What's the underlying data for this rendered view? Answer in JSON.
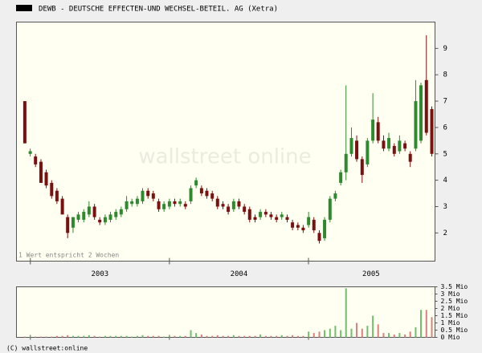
{
  "chart_data": {
    "type": "candlestick",
    "title": "DEWB - DEUTSCHE EFFECTEN-UND WECHSEL-BETEIL. AG (Xetra)",
    "note": "1 Wert entspricht 2 Wochen",
    "watermark": "wallstreet online",
    "footer": "(C) wallstreet:online",
    "up_color": "#2f8a2f",
    "down_color": "#7a1010",
    "x": [
      2002.96,
      2002.999,
      2003.037,
      2003.076,
      2003.114,
      2003.153,
      2003.191,
      2003.23,
      2003.268,
      2003.307,
      2003.345,
      2003.384,
      2003.422,
      2003.461,
      2003.499,
      2003.538,
      2003.576,
      2003.615,
      2003.653,
      2003.692,
      2003.73,
      2003.769,
      2003.807,
      2003.846,
      2003.884,
      2003.923,
      2003.961,
      2004.0,
      2004.038,
      2004.077,
      2004.115,
      2004.154,
      2004.192,
      2004.231,
      2004.269,
      2004.308,
      2004.346,
      2004.385,
      2004.423,
      2004.462,
      2004.5,
      2004.539,
      2004.577,
      2004.616,
      2004.654,
      2004.693,
      2004.731,
      2004.77,
      2004.808,
      2004.847,
      2004.885,
      2004.924,
      2004.962,
      2005.001,
      2005.039,
      2005.078,
      2005.116,
      2005.155,
      2005.193,
      2005.232,
      2005.27,
      2005.309,
      2005.347,
      2005.386,
      2005.424,
      2005.463,
      2005.501,
      2005.54,
      2005.578,
      2005.617,
      2005.655,
      2005.694,
      2005.732,
      2005.771,
      2005.809,
      2005.848,
      2005.887
    ],
    "open": [
      7.0,
      5.0,
      4.9,
      4.7,
      4.3,
      3.9,
      3.6,
      3.3,
      2.6,
      2.2,
      2.5,
      2.5,
      2.7,
      3.0,
      2.5,
      2.4,
      2.5,
      2.6,
      2.7,
      2.9,
      3.1,
      3.1,
      3.2,
      3.6,
      3.5,
      3.2,
      2.9,
      3.0,
      3.2,
      3.1,
      3.1,
      3.2,
      3.8,
      3.7,
      3.6,
      3.5,
      3.3,
      3.1,
      3.0,
      2.9,
      3.2,
      3.0,
      2.9,
      2.6,
      2.6,
      2.8,
      2.7,
      2.6,
      2.6,
      2.6,
      2.4,
      2.3,
      2.2,
      2.3,
      2.5,
      2.0,
      1.8,
      2.5,
      3.3,
      3.9,
      4.3,
      5.0,
      5.5,
      4.8,
      4.6,
      5.5,
      6.2,
      5.5,
      5.2,
      5.3,
      5.1,
      5.4,
      5.0,
      5.2,
      5.5,
      7.8,
      6.7
    ],
    "high": [
      7.0,
      5.2,
      5.0,
      4.8,
      4.4,
      4.0,
      3.7,
      3.4,
      2.7,
      2.6,
      2.8,
      2.9,
      3.2,
      3.1,
      2.6,
      2.7,
      2.8,
      2.9,
      3.0,
      3.4,
      3.3,
      3.4,
      3.7,
      3.7,
      3.6,
      3.3,
      3.2,
      3.3,
      3.3,
      3.3,
      3.2,
      3.8,
      4.1,
      3.8,
      3.7,
      3.6,
      3.4,
      3.2,
      3.1,
      3.3,
      3.3,
      3.1,
      3.0,
      2.7,
      2.9,
      2.9,
      2.8,
      2.7,
      2.8,
      2.7,
      2.5,
      2.4,
      2.3,
      2.8,
      2.6,
      2.1,
      2.6,
      3.4,
      3.6,
      4.4,
      7.6,
      6.0,
      5.7,
      4.9,
      5.6,
      7.3,
      6.4,
      5.7,
      5.8,
      5.4,
      5.7,
      5.5,
      5.1,
      7.8,
      7.7,
      9.5,
      6.8
    ],
    "low": [
      5.4,
      4.9,
      4.5,
      3.9,
      3.7,
      3.3,
      3.1,
      2.7,
      1.8,
      2.0,
      2.4,
      2.4,
      2.6,
      2.5,
      2.3,
      2.3,
      2.4,
      2.5,
      2.6,
      2.8,
      3.0,
      3.0,
      3.1,
      3.3,
      3.2,
      2.8,
      2.8,
      2.9,
      3.0,
      3.0,
      2.9,
      3.1,
      3.7,
      3.4,
      3.3,
      3.2,
      2.9,
      2.9,
      2.7,
      2.8,
      2.9,
      2.7,
      2.4,
      2.4,
      2.5,
      2.6,
      2.5,
      2.4,
      2.5,
      2.4,
      2.1,
      2.1,
      2.0,
      2.2,
      2.0,
      1.6,
      1.7,
      2.4,
      3.2,
      3.8,
      4.0,
      4.9,
      4.7,
      3.9,
      4.5,
      5.4,
      5.4,
      5.1,
      5.1,
      4.9,
      5.0,
      5.1,
      4.5,
      5.1,
      5.4,
      5.7,
      4.9
    ],
    "close": [
      5.4,
      5.1,
      4.6,
      3.9,
      3.8,
      3.4,
      3.2,
      2.7,
      2.0,
      2.6,
      2.7,
      2.8,
      3.0,
      2.6,
      2.4,
      2.6,
      2.7,
      2.8,
      2.9,
      3.2,
      3.2,
      3.3,
      3.6,
      3.4,
      3.3,
      2.9,
      3.1,
      3.2,
      3.1,
      3.2,
      3.0,
      3.7,
      4.0,
      3.5,
      3.4,
      3.3,
      3.0,
      3.0,
      2.8,
      3.2,
      3.0,
      2.8,
      2.5,
      2.5,
      2.8,
      2.7,
      2.6,
      2.5,
      2.7,
      2.5,
      2.2,
      2.2,
      2.1,
      2.6,
      2.1,
      1.7,
      2.5,
      3.3,
      3.5,
      4.3,
      5.0,
      5.6,
      4.8,
      4.2,
      5.5,
      6.3,
      5.5,
      5.2,
      5.6,
      5.0,
      5.5,
      5.2,
      4.7,
      7.0,
      7.6,
      5.8,
      5.0
    ],
    "volume": [
      0.05,
      0.05,
      0.05,
      0.05,
      0.05,
      0.05,
      0.1,
      0.1,
      0.15,
      0.1,
      0.1,
      0.1,
      0.15,
      0.1,
      0.05,
      0.1,
      0.1,
      0.1,
      0.1,
      0.1,
      0.05,
      0.1,
      0.15,
      0.1,
      0.1,
      0.1,
      0.05,
      0.1,
      0.1,
      0.1,
      0.1,
      0.5,
      0.3,
      0.2,
      0.1,
      0.1,
      0.15,
      0.1,
      0.1,
      0.15,
      0.1,
      0.1,
      0.1,
      0.1,
      0.2,
      0.1,
      0.1,
      0.1,
      0.15,
      0.1,
      0.15,
      0.1,
      0.1,
      0.4,
      0.3,
      0.4,
      0.5,
      0.6,
      0.8,
      0.5,
      3.4,
      0.6,
      1.0,
      0.6,
      0.8,
      1.5,
      0.9,
      0.3,
      0.3,
      0.2,
      0.3,
      0.2,
      0.4,
      0.7,
      1.9,
      1.9,
      1.4
    ],
    "xlim": [
      2002.9,
      2005.91
    ],
    "xticks": [
      {
        "value": 2003.5,
        "label": "2003"
      },
      {
        "value": 2004.5,
        "label": "2004"
      },
      {
        "value": 2005.45,
        "label": "2005"
      }
    ],
    "year_separators": [
      2003,
      2004,
      2005
    ],
    "ylim": [
      0.93,
      10
    ],
    "yticks": [
      2,
      3,
      4,
      5,
      6,
      7,
      8,
      9
    ],
    "volume_ylim": [
      0,
      3.5
    ],
    "volume_yticks": [
      {
        "value": 3.5,
        "label": "3.5 Mio"
      },
      {
        "value": 3,
        "label": "3 Mio"
      },
      {
        "value": 2.5,
        "label": "2.5 Mio"
      },
      {
        "value": 2,
        "label": "2 Mio"
      },
      {
        "value": 1.5,
        "label": "1.5 Mio"
      },
      {
        "value": 1,
        "label": "1 Mio"
      },
      {
        "value": 0.5,
        "label": "0.5 Mio"
      },
      {
        "value": 0,
        "label": "0 Mio"
      }
    ]
  }
}
